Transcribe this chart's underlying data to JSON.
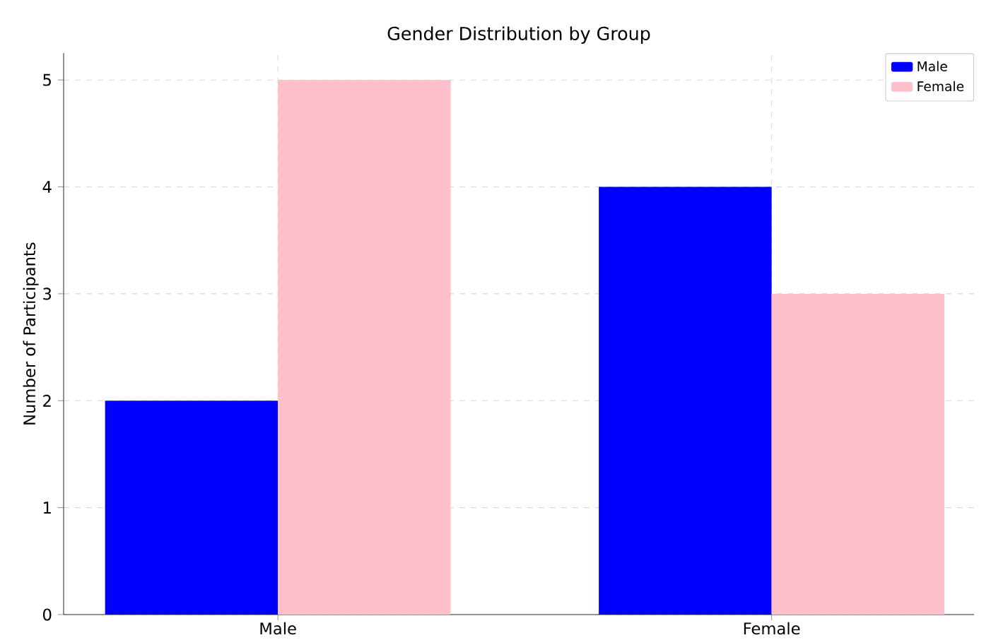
{
  "chart_data": {
    "type": "bar",
    "title": "Gender Distribution by Group",
    "ylabel": "Number of Participants",
    "categories": [
      "Male",
      "Female"
    ],
    "series": [
      {
        "name": "Male",
        "color": "#0000ff",
        "values": [
          2,
          4
        ]
      },
      {
        "name": "Female",
        "color": "#ffc0cb",
        "values": [
          5,
          3
        ]
      }
    ],
    "ylim": [
      0,
      5.25
    ],
    "yticks": [
      0,
      1,
      2,
      3,
      4,
      5
    ],
    "grid": true,
    "legend": "top right"
  }
}
